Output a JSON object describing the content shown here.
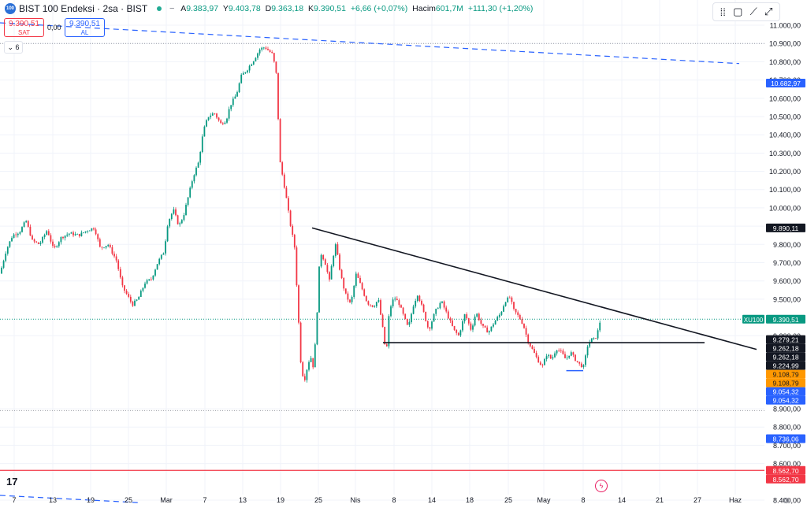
{
  "header": {
    "logo_text": "100",
    "title": "BIST 100 Endeksi · 2sa · BIST",
    "ohlc": [
      {
        "key": "A",
        "value": "9.383,97"
      },
      {
        "key": "Y",
        "value": "9.403,78"
      },
      {
        "key": "D",
        "value": "9.363,18"
      },
      {
        "key": "K",
        "value": "9.390,51"
      },
      {
        "key": "",
        "value": "+6,66 (+0,07%)"
      },
      {
        "key": "Hacim",
        "value": "601,7M"
      },
      {
        "key": "",
        "value": "+111,30 (+1,20%)"
      }
    ]
  },
  "trade": {
    "sell_price": "9.390,51",
    "sell_label": "SAT",
    "spread": "0,00",
    "buy_price": "9.390,51",
    "buy_label": "AL"
  },
  "indicators_toggle": "6",
  "toolbar": {
    "icons": [
      "dots-grid-icon",
      "rectangle-icon",
      "chart-line-icon",
      "fullscreen-icon"
    ]
  },
  "colors": {
    "up": "#089981",
    "down": "#f23645",
    "blue": "#2962ff",
    "orange": "#ff9800",
    "black": "#131722"
  },
  "chart_data": {
    "type": "candlestick",
    "symbol": "XU100",
    "current_price": 9390.51,
    "y_axis": {
      "ticks": [
        "11.000,00",
        "10.900,00",
        "10.800,00",
        "10.700,00",
        "10.600,00",
        "10.500,00",
        "10.400,00",
        "10.300,00",
        "10.200,00",
        "10.100,00",
        "10.000,00",
        "9.900,00",
        "9.800,00",
        "9.700,00",
        "9.600,00",
        "9.500,00",
        "9.300,00",
        "8.900,00",
        "8.800,00",
        "8.700,00",
        "8.600,00",
        "8.400,00"
      ],
      "range": [
        8380,
        11040
      ]
    },
    "x_axis": {
      "ticks": [
        "7",
        "13",
        "19",
        "25",
        "Mar",
        "7",
        "13",
        "19",
        "25",
        "Nis",
        "8",
        "14",
        "18",
        "25",
        "May",
        "8",
        "14",
        "21",
        "27",
        "Haz"
      ]
    },
    "price_labels": [
      {
        "text": "10.682,97",
        "value": 10682.97,
        "color": "blue"
      },
      {
        "text": "9.890,11",
        "value": 9890.11,
        "color": "black"
      },
      {
        "text": "9.390,51",
        "value": 9390.51,
        "color": "up",
        "tag": "XU100"
      },
      {
        "text": "9.279,21",
        "value": 9279.21,
        "color": "black"
      },
      {
        "text": "9.262,18",
        "value": 9262.18,
        "color": "black"
      },
      {
        "text": "9.262,18",
        "value": 9262.18,
        "color": "black"
      },
      {
        "text": "9.224,99",
        "value": 9224.99,
        "color": "black"
      },
      {
        "text": "9.108,79",
        "value": 9108.79,
        "color": "orange"
      },
      {
        "text": "9.108,79",
        "value": 9108.79,
        "color": "orange"
      },
      {
        "text": "9.054,32",
        "value": 9054.32,
        "color": "blue"
      },
      {
        "text": "9.054,32",
        "value": 9054.32,
        "color": "blue"
      },
      {
        "text": "8.736,06",
        "value": 8736.06,
        "color": "blue"
      },
      {
        "text": "8.562,70",
        "value": 8562.7,
        "color": "down"
      },
      {
        "text": "8.562,70",
        "value": 8562.7,
        "color": "down"
      }
    ],
    "horizontal_levels": [
      {
        "value": 8562.7,
        "color": "down",
        "style": "solid"
      },
      {
        "value": 10900,
        "color": "gray",
        "style": "dotted"
      },
      {
        "value": 8890,
        "color": "gray",
        "style": "dotted"
      }
    ],
    "anchors": [
      {
        "date": "Şub 1",
        "x": 0
      },
      {
        "date": "Şub 7",
        "x": 18
      },
      {
        "date": "Şub 13",
        "x": 67
      },
      {
        "date": "Şub 19",
        "x": 115
      },
      {
        "date": "Şub 25",
        "x": 163
      },
      {
        "date": "Mar 1",
        "x": 211
      },
      {
        "date": "Mar 7",
        "x": 260
      },
      {
        "date": "Mar 13",
        "x": 308
      },
      {
        "date": "Mar 19",
        "x": 356
      },
      {
        "date": "Mar 25",
        "x": 404
      },
      {
        "date": "Nis 1",
        "x": 451
      },
      {
        "date": "Nis 8",
        "x": 500
      },
      {
        "date": "Nis 14",
        "x": 548
      },
      {
        "date": "Nis 18",
        "x": 596
      },
      {
        "date": "Nis 25",
        "x": 645
      },
      {
        "date": "May 1",
        "x": 690
      },
      {
        "date": "May 8",
        "x": 740
      },
      {
        "date": "May 10",
        "x": 762
      }
    ],
    "price_path": [
      [
        0,
        9640
      ],
      [
        8,
        9770
      ],
      [
        16,
        9850
      ],
      [
        25,
        9870
      ],
      [
        33,
        9930
      ],
      [
        41,
        9820
      ],
      [
        50,
        9800
      ],
      [
        60,
        9880
      ],
      [
        68,
        9770
      ],
      [
        78,
        9840
      ],
      [
        88,
        9860
      ],
      [
        100,
        9850
      ],
      [
        112,
        9880
      ],
      [
        120,
        9890
      ],
      [
        127,
        9780
      ],
      [
        137,
        9800
      ],
      [
        148,
        9710
      ],
      [
        155,
        9570
      ],
      [
        163,
        9510
      ],
      [
        168,
        9470
      ],
      [
        175,
        9500
      ],
      [
        184,
        9590
      ],
      [
        192,
        9610
      ],
      [
        200,
        9700
      ],
      [
        208,
        9760
      ],
      [
        213,
        9920
      ],
      [
        220,
        9990
      ],
      [
        227,
        9900
      ],
      [
        233,
        9960
      ],
      [
        240,
        10080
      ],
      [
        245,
        10170
      ],
      [
        252,
        10250
      ],
      [
        258,
        10420
      ],
      [
        264,
        10500
      ],
      [
        272,
        10520
      ],
      [
        280,
        10460
      ],
      [
        287,
        10480
      ],
      [
        292,
        10560
      ],
      [
        300,
        10620
      ],
      [
        306,
        10720
      ],
      [
        314,
        10760
      ],
      [
        322,
        10810
      ],
      [
        330,
        10870
      ],
      [
        336,
        10880
      ],
      [
        341,
        10860
      ],
      [
        346,
        10840
      ],
      [
        351,
        10720
      ],
      [
        355,
        10260
      ],
      [
        362,
        10090
      ],
      [
        368,
        9920
      ],
      [
        374,
        9780
      ],
      [
        378,
        9450
      ],
      [
        382,
        9130
      ],
      [
        386,
        9050
      ],
      [
        390,
        9130
      ],
      [
        394,
        9190
      ],
      [
        398,
        9120
      ],
      [
        402,
        9400
      ],
      [
        406,
        9760
      ],
      [
        412,
        9710
      ],
      [
        418,
        9600
      ],
      [
        422,
        9720
      ],
      [
        426,
        9800
      ],
      [
        432,
        9640
      ],
      [
        438,
        9530
      ],
      [
        445,
        9470
      ],
      [
        452,
        9640
      ],
      [
        460,
        9550
      ],
      [
        466,
        9480
      ],
      [
        474,
        9460
      ],
      [
        480,
        9500
      ],
      [
        486,
        9330
      ],
      [
        490,
        9190
      ],
      [
        494,
        9440
      ],
      [
        500,
        9510
      ],
      [
        506,
        9480
      ],
      [
        512,
        9410
      ],
      [
        518,
        9340
      ],
      [
        524,
        9460
      ],
      [
        530,
        9530
      ],
      [
        536,
        9450
      ],
      [
        544,
        9330
      ],
      [
        552,
        9430
      ],
      [
        560,
        9490
      ],
      [
        568,
        9410
      ],
      [
        576,
        9330
      ],
      [
        582,
        9300
      ],
      [
        590,
        9420
      ],
      [
        598,
        9330
      ],
      [
        604,
        9430
      ],
      [
        612,
        9350
      ],
      [
        620,
        9320
      ],
      [
        628,
        9380
      ],
      [
        635,
        9420
      ],
      [
        641,
        9490
      ],
      [
        647,
        9510
      ],
      [
        652,
        9440
      ],
      [
        659,
        9400
      ],
      [
        664,
        9360
      ],
      [
        670,
        9270
      ],
      [
        676,
        9220
      ],
      [
        682,
        9170
      ],
      [
        688,
        9130
      ],
      [
        694,
        9200
      ],
      [
        700,
        9170
      ],
      [
        706,
        9230
      ],
      [
        712,
        9210
      ],
      [
        718,
        9170
      ],
      [
        724,
        9210
      ],
      [
        730,
        9170
      ],
      [
        736,
        9140
      ],
      [
        741,
        9130
      ],
      [
        745,
        9240
      ],
      [
        750,
        9280
      ],
      [
        755,
        9280
      ],
      [
        759,
        9330
      ],
      [
        762,
        9390
      ]
    ],
    "trendlines": [
      {
        "from": {
          "date": "Mar 24",
          "value": 9890.11
        },
        "to": {
          "date": "May 28",
          "value": 9224.99
        },
        "color": "black"
      },
      {
        "from": {
          "date": "Nis 6",
          "value": 9262.18
        },
        "to": {
          "date": "May 22",
          "value": 9262.18
        },
        "color": "black"
      },
      {
        "from": {
          "date": "May 5",
          "value": 9108.79
        },
        "to": {
          "date": "May 8",
          "value": 9108.79
        },
        "color": "blue"
      },
      {
        "from": {
          "date": "Şub 1",
          "value": 11013
        },
        "to": {
          "date": "May 26",
          "value": 10790
        },
        "color": "blue",
        "style": "dashed"
      },
      {
        "from": {
          "date": "Şub 1",
          "value": 8426
        },
        "to": {
          "date": "Şub 27",
          "value": 8386
        },
        "color": "blue",
        "style": "dashed"
      }
    ]
  }
}
